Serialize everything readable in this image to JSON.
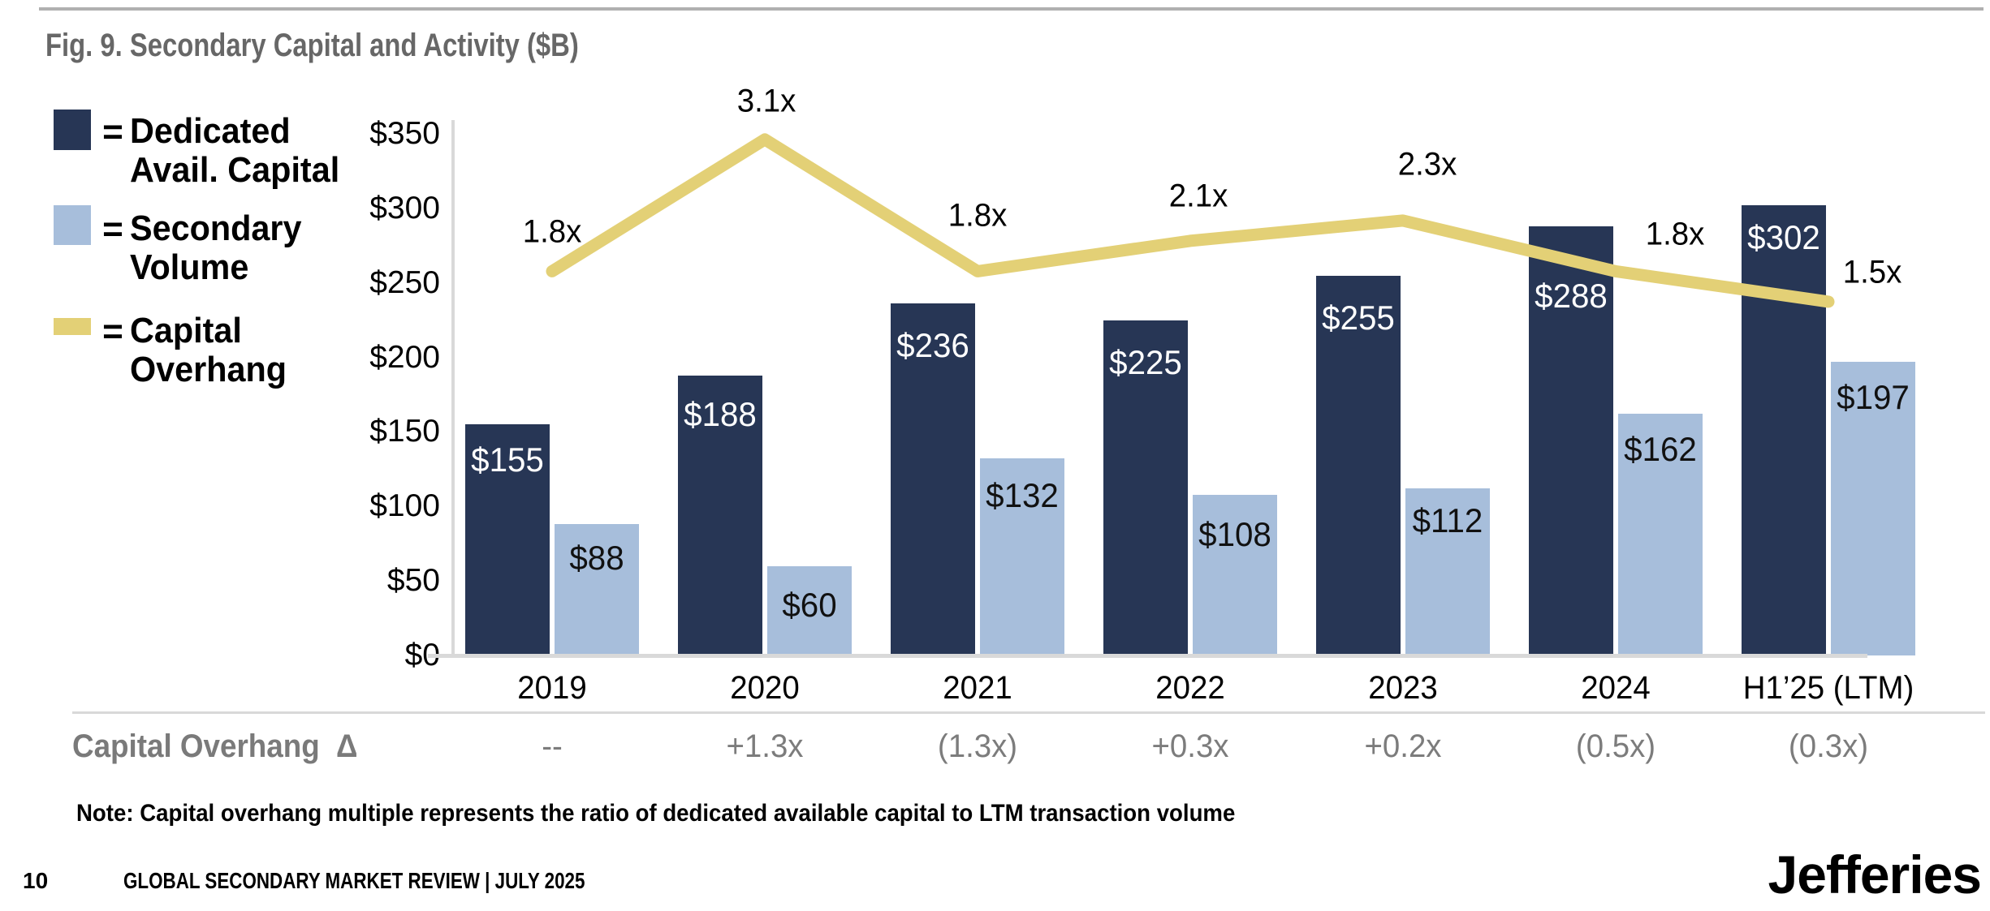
{
  "title": "Fig. 9. Secondary Capital and Activity ($B)",
  "legend": {
    "items": [
      {
        "swatch": "navy-square",
        "eq": "=",
        "line1": "Dedicated",
        "line2": "Avail. Capital"
      },
      {
        "swatch": "lightblue-square",
        "eq": "=",
        "line1": "Secondary",
        "line2": "Volume"
      },
      {
        "swatch": "yellow-line",
        "eq": "=",
        "line1": "Capital",
        "line2": "Overhang"
      }
    ]
  },
  "chart_data": {
    "type": "bar",
    "subtype": "grouped bars with overlay line",
    "categories": [
      "2019",
      "2020",
      "2021",
      "2022",
      "2023",
      "2024",
      "H1’25 (LTM)"
    ],
    "series": [
      {
        "name": "Dedicated Avail. Capital",
        "type": "bar",
        "values": [
          155,
          188,
          236,
          225,
          255,
          288,
          302
        ],
        "labels": [
          "$155",
          "$188",
          "$236",
          "$225",
          "$255",
          "$288",
          "$302"
        ]
      },
      {
        "name": "Secondary Volume",
        "type": "bar",
        "values": [
          88,
          60,
          132,
          108,
          112,
          162,
          197
        ],
        "labels": [
          "$88",
          "$60",
          "$132",
          "$108",
          "$112",
          "$162",
          "$197"
        ]
      },
      {
        "name": "Capital Overhang",
        "type": "line",
        "values": [
          1.8,
          3.1,
          1.8,
          2.1,
          2.3,
          1.8,
          1.5
        ],
        "labels": [
          "1.8x",
          "3.1x",
          "1.8x",
          "2.1x",
          "2.3x",
          "1.8x",
          "1.5x"
        ]
      }
    ],
    "y_axis": {
      "ticks": [
        "$350",
        "$300",
        "$250",
        "$200",
        "$150",
        "$100",
        "$50",
        "$0"
      ],
      "min": 0,
      "max": 350,
      "unit": "$B"
    },
    "grid": false,
    "legend_position": "left"
  },
  "delta_row": {
    "label": "Capital Overhang",
    "symbol": "Δ",
    "values": [
      "--",
      "+1.3x",
      "(1.3x)",
      "+0.3x",
      "+0.2x",
      "(0.5x)",
      "(0.3x)"
    ]
  },
  "note": "Note: Capital overhang multiple represents the ratio of dedicated available capital to LTM transaction volume",
  "footer": {
    "page_number": "10",
    "text": "GLOBAL SECONDARY MARKET REVIEW  |  JULY 2025",
    "logo": "Jefferies"
  },
  "colors": {
    "navy": "#273655",
    "light_blue": "#a7bedb",
    "yellow": "#e3d076",
    "dark_label_text": "#ffffff",
    "light_label_text": "#111111",
    "title_gray": "#676767",
    "delta_gray": "#7c7c7c",
    "rule_top": "#b0b0b0",
    "rule_light": "#d9d9d9"
  }
}
